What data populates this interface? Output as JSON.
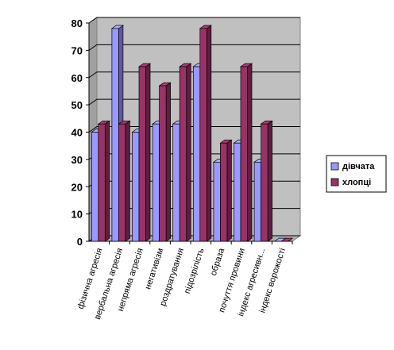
{
  "chart_data": {
    "type": "bar",
    "title": "",
    "xlabel": "",
    "ylabel": "",
    "ylim": [
      0,
      80
    ],
    "yticks": [
      0,
      10,
      20,
      30,
      40,
      50,
      60,
      70,
      80
    ],
    "grid": true,
    "legend_position": "right",
    "style": "3d-clustered-column",
    "categories": [
      "фізична агресія",
      "вербальна агресія",
      "непряма агресія",
      "негативізм",
      "роздратування",
      "підозрілість",
      "образа",
      "почуття провини",
      "індекс агресивн...",
      "індекс ворожості"
    ],
    "series": [
      {
        "name": "дівчата",
        "color": "#9999ff",
        "values": [
          40,
          78,
          40,
          43,
          43,
          64,
          29,
          36,
          29,
          0
        ]
      },
      {
        "name": "хлопці",
        "color": "#993366",
        "values": [
          43,
          43,
          64,
          57,
          64,
          78,
          36,
          64,
          43,
          0
        ]
      }
    ]
  }
}
